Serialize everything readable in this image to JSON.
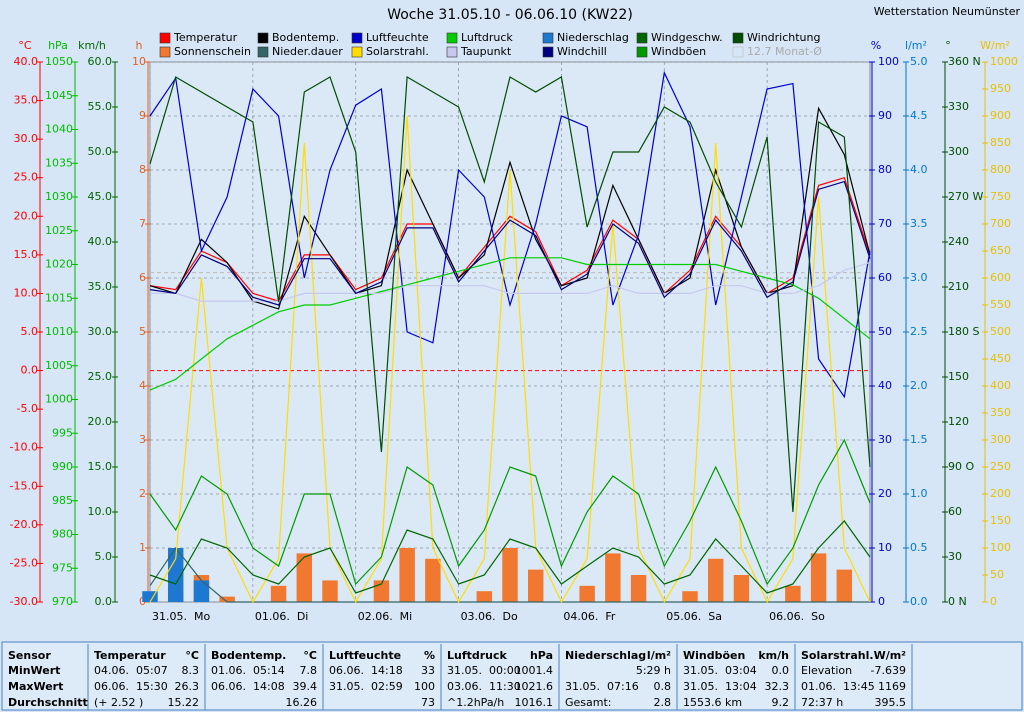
{
  "chart_data": {
    "type": "line",
    "title": "Woche 31.05.10 - 06.06.10 (KW22)",
    "station": "Wetterstation Neumünster",
    "x": [
      0,
      6,
      12,
      18,
      24,
      30,
      36,
      42,
      48,
      54,
      60,
      66,
      72,
      78,
      84,
      90,
      96,
      102,
      108,
      114,
      120,
      126,
      132,
      138,
      144,
      150,
      156,
      162,
      168
    ],
    "xlim": [
      0,
      168
    ],
    "xticks": [
      {
        "value": 0,
        "label": "31.05.  Mo"
      },
      {
        "value": 24,
        "label": "01.06.  Di"
      },
      {
        "value": 48,
        "label": "02.06.  Mi"
      },
      {
        "value": 72,
        "label": "03.06.  Do"
      },
      {
        "value": 96,
        "label": "04.06.  Fr"
      },
      {
        "value": 120,
        "label": "05.06.  Sa"
      },
      {
        "value": 144,
        "label": "06.06.  So"
      }
    ],
    "axes": [
      {
        "unit": "°C",
        "color": "#ff0000",
        "side": "left",
        "ylim": [
          -30,
          40
        ],
        "yticks": [
          {
            "value": -30,
            "label": "-30.0"
          },
          {
            "value": -25,
            "label": "-25.0"
          },
          {
            "value": -20,
            "label": "-20.0"
          },
          {
            "value": -15,
            "label": "-15.0"
          },
          {
            "value": -10,
            "label": "-10.0"
          },
          {
            "value": -5,
            "label": "-5.0"
          },
          {
            "value": 0,
            "label": "0.0"
          },
          {
            "value": 5,
            "label": "5.0"
          },
          {
            "value": 10,
            "label": "10.0"
          },
          {
            "value": 15,
            "label": "15.0"
          },
          {
            "value": 20,
            "label": "20.0"
          },
          {
            "value": 25,
            "label": "25.0"
          },
          {
            "value": 30,
            "label": "30.0"
          },
          {
            "value": 35,
            "label": "35.0"
          },
          {
            "value": 40,
            "label": "40.0"
          }
        ]
      },
      {
        "unit": "hPa",
        "color": "#00bb00",
        "side": "left",
        "ylim": [
          970,
          1050
        ],
        "yticks": [
          970,
          975,
          980,
          985,
          990,
          995,
          1000,
          1005,
          1010,
          1015,
          1020,
          1025,
          1030,
          1035,
          1040,
          1045,
          1050
        ]
      },
      {
        "unit": "km/h",
        "color": "#006600",
        "side": "left",
        "ylim": [
          0,
          60
        ],
        "yticks": [
          {
            "value": 0,
            "label": "0.0"
          },
          {
            "value": 5,
            "label": "5.0"
          },
          {
            "value": 10,
            "label": "10.0"
          },
          {
            "value": 15,
            "label": "15.0"
          },
          {
            "value": 20,
            "label": "20.0"
          },
          {
            "value": 25,
            "label": "25.0"
          },
          {
            "value": 30,
            "label": "30.0"
          },
          {
            "value": 35,
            "label": "35.0"
          },
          {
            "value": 40,
            "label": "40.0"
          },
          {
            "value": 45,
            "label": "45.0"
          },
          {
            "value": 50,
            "label": "50.0"
          },
          {
            "value": 55,
            "label": "55.0"
          },
          {
            "value": 60,
            "label": "60.0"
          }
        ]
      },
      {
        "unit": "h",
        "color": "#e06020",
        "side": "left",
        "grid": true,
        "ylim": [
          0,
          10
        ],
        "yticks": [
          0,
          1,
          2,
          3,
          4,
          5,
          6,
          7,
          8,
          9,
          10
        ]
      },
      {
        "unit": "%",
        "color": "#0000cc",
        "side": "right",
        "ylim": [
          0,
          100
        ],
        "yticks": [
          0,
          10,
          20,
          30,
          40,
          50,
          60,
          70,
          80,
          90,
          100
        ]
      },
      {
        "unit": "l/m²",
        "color": "#0077cc",
        "side": "right",
        "ylim": [
          0,
          5
        ],
        "yticks": [
          {
            "value": 0,
            "label": "0.0"
          },
          {
            "value": 0.5,
            "label": "0.5"
          },
          {
            "value": 1,
            "label": "1.0"
          },
          {
            "value": 1.5,
            "label": "1.5"
          },
          {
            "value": 2,
            "label": "2.0"
          },
          {
            "value": 2.5,
            "label": "2.5"
          },
          {
            "value": 3,
            "label": "3.0"
          },
          {
            "value": 3.5,
            "label": "3.5"
          },
          {
            "value": 4,
            "label": "4.0"
          },
          {
            "value": 4.5,
            "label": "4.5"
          },
          {
            "value": 5,
            "label": "5.0"
          }
        ]
      },
      {
        "unit": "°",
        "color": "#004d00",
        "side": "right",
        "ylim": [
          0,
          360
        ],
        "yticks": [
          {
            "value": 0,
            "label": "0   N"
          },
          30,
          60,
          {
            "value": 90,
            "label": "90   O"
          },
          120,
          150,
          {
            "value": 180,
            "label": "180 S"
          },
          210,
          240,
          {
            "value": 270,
            "label": "270 W"
          },
          300,
          330,
          {
            "value": 360,
            "label": "360 N"
          }
        ]
      },
      {
        "unit": "W/m²",
        "color": "#e8c000",
        "side": "right",
        "ylim": [
          0,
          1000
        ],
        "yticks": [
          0,
          50,
          100,
          150,
          200,
          250,
          300,
          350,
          400,
          450,
          500,
          550,
          600,
          650,
          700,
          750,
          800,
          850,
          900,
          950,
          1000
        ]
      }
    ],
    "series": [
      {
        "name": "Temperatur",
        "color": "#ff0000",
        "axis": "°C",
        "type": "line",
        "values": [
          11,
          10.5,
          15.5,
          14,
          10,
          9,
          15,
          15,
          10.5,
          12,
          19,
          19,
          12,
          16,
          20,
          18,
          11,
          13,
          19.5,
          17,
          10,
          13,
          20,
          16,
          10,
          12,
          24,
          25,
          15
        ]
      },
      {
        "name": "Sonnenschein",
        "color": "#f07830",
        "axis": "h",
        "type": "bar",
        "values": [
          0,
          0.2,
          0.5,
          0.1,
          0,
          0.3,
          0.9,
          0.4,
          0,
          0.4,
          1,
          0.8,
          0,
          0.2,
          1,
          0.6,
          0,
          0.3,
          0.9,
          0.5,
          0,
          0.2,
          0.8,
          0.5,
          0,
          0.3,
          0.9,
          0.6,
          0
        ]
      },
      {
        "name": "Bodentemp.",
        "color": "#000000",
        "axis": "°C",
        "type": "line",
        "values": [
          11,
          10,
          17,
          14,
          9,
          8,
          20,
          15,
          10,
          11,
          26,
          19,
          12,
          15,
          27,
          17,
          11,
          12,
          24,
          17,
          10,
          12,
          26,
          16,
          10,
          11,
          34,
          28,
          15
        ]
      },
      {
        "name": "Nieder.dauer",
        "color": "#336666",
        "axis": "h",
        "type": "line",
        "values": [
          0.3,
          1,
          0.4,
          0,
          0,
          0,
          0,
          0,
          0,
          0,
          0,
          0,
          0,
          0,
          0,
          0,
          0,
          0,
          0,
          0,
          0,
          0,
          0,
          0,
          0,
          0,
          0,
          0,
          0
        ]
      },
      {
        "name": "Luftfeuchte",
        "color": "#0000cc",
        "axis": "%",
        "type": "line",
        "values": [
          90,
          97,
          65,
          75,
          95,
          90,
          60,
          80,
          92,
          95,
          50,
          48,
          80,
          75,
          55,
          70,
          90,
          88,
          55,
          68,
          98,
          88,
          55,
          75,
          95,
          96,
          45,
          38,
          65
        ]
      },
      {
        "name": "Solarstrahl.",
        "color": "#ffdd00",
        "axis": "W/m²",
        "type": "line",
        "values": [
          0,
          80,
          600,
          100,
          0,
          80,
          850,
          100,
          0,
          80,
          900,
          100,
          0,
          80,
          800,
          100,
          0,
          80,
          700,
          100,
          0,
          80,
          850,
          100,
          0,
          80,
          750,
          100,
          0
        ]
      },
      {
        "name": "Luftdruck",
        "color": "#00cc00",
        "axis": "hPa",
        "type": "line",
        "values": [
          1001.4,
          1003,
          1006,
          1009,
          1011,
          1013,
          1014,
          1014,
          1015,
          1016,
          1017,
          1018,
          1019,
          1020,
          1021,
          1021,
          1021,
          1020,
          1020,
          1020,
          1020,
          1020,
          1020,
          1019,
          1018,
          1017,
          1015,
          1012,
          1009
        ]
      },
      {
        "name": "Taupunkt",
        "color": "#c8c8ee",
        "axis": "°C",
        "type": "line",
        "values": [
          10,
          10,
          9,
          9,
          9,
          9,
          10,
          10,
          10,
          10,
          11,
          11,
          11,
          11,
          10,
          10,
          10,
          10,
          11,
          10,
          10,
          10,
          11,
          11,
          10,
          10,
          11,
          13,
          14
        ]
      },
      {
        "name": "Niederschlag",
        "color": "#1e78d2",
        "axis": "l/m²",
        "type": "bar",
        "values": [
          0.1,
          0.5,
          0.2,
          0,
          0,
          0,
          0,
          0,
          0,
          0,
          0,
          0,
          0,
          0,
          0,
          0,
          0,
          0,
          0,
          0,
          0,
          0,
          0,
          0,
          0,
          0,
          0,
          0,
          0
        ]
      },
      {
        "name": "Windchill",
        "color": "#000080",
        "axis": "°C",
        "type": "line",
        "values": [
          10.5,
          10,
          15,
          13.5,
          9.5,
          8.5,
          14.5,
          14.5,
          10,
          11.5,
          18.5,
          18.5,
          11.5,
          15.5,
          19.5,
          17.5,
          10.5,
          12.5,
          19,
          16.5,
          9.5,
          12.5,
          19.5,
          15.5,
          9.5,
          11.5,
          23.5,
          24.5,
          14.5
        ]
      },
      {
        "name": "Windgeschw.",
        "color": "#006600",
        "axis": "km/h",
        "type": "line",
        "values": [
          3,
          2,
          7,
          6,
          3,
          2,
          5,
          6,
          1,
          2,
          8,
          7,
          2,
          3,
          7,
          6,
          2,
          4,
          6,
          5,
          2,
          3,
          7,
          4,
          1,
          2,
          6,
          9,
          5
        ]
      },
      {
        "name": "Windböen",
        "color": "#009900",
        "axis": "km/h",
        "type": "line",
        "values": [
          12,
          8,
          14,
          12,
          6,
          4,
          12,
          12,
          2,
          5,
          15,
          13,
          4,
          8,
          15,
          14,
          4,
          10,
          14,
          12,
          4,
          9,
          15,
          9,
          2,
          6,
          13,
          18,
          11
        ]
      },
      {
        "name": "Windrichtung",
        "color": "#004d00",
        "axis": "°",
        "type": "line",
        "values": [
          292,
          350,
          340,
          330,
          320,
          200,
          340,
          350,
          300,
          100,
          350,
          340,
          330,
          280,
          350,
          340,
          350,
          250,
          300,
          300,
          330,
          320,
          280,
          250,
          310,
          60,
          320,
          310,
          90
        ]
      }
    ],
    "reference_lines": [
      {
        "axis": "°C",
        "value": 0,
        "color": "#ff0000"
      },
      {
        "axis": "°C",
        "value": 12.7,
        "color": "#bbbbbb",
        "label": "12.7 Monat-Ø"
      }
    ],
    "table": {
      "row_labels": [
        "Sensor",
        "MinWert",
        "MaxWert",
        "Durchschnitt"
      ],
      "columns": [
        {
          "title": "Temperatur",
          "unit": "°C",
          "rows": [
            [
              "04.06.",
              "05:07",
              "8.3"
            ],
            [
              "06.06.",
              "15:30",
              "26.3"
            ],
            [
              "(+ 2.52 )",
              "15.22"
            ]
          ]
        },
        {
          "title": "Bodentemp.",
          "unit": "°C",
          "rows": [
            [
              "01.06.",
              "05:14",
              "7.8"
            ],
            [
              "06.06.",
              "14:08",
              "39.4"
            ],
            [
              "16.26"
            ]
          ]
        },
        {
          "title": "Luftfeuchte",
          "unit": "%",
          "rows": [
            [
              "06.06.",
              "14:18",
              "33"
            ],
            [
              "31.05.",
              "02:59",
              "100"
            ],
            [
              "73"
            ]
          ]
        },
        {
          "title": "Luftdruck",
          "unit": "hPa",
          "rows": [
            [
              "31.05.",
              "00:00",
              "1001.4"
            ],
            [
              "03.06.",
              "11:30",
              "1021.6"
            ],
            [
              "^1.2hPa/h",
              "1016.1"
            ]
          ]
        },
        {
          "title": "Niederschlag",
          "unit": "l/m²",
          "rows": [
            [
              "5:29 h"
            ],
            [
              "31.05.",
              "07:16",
              "0.8"
            ],
            [
              "Gesamt:",
              "2.8"
            ]
          ]
        },
        {
          "title": "Windböen",
          "unit": "km/h",
          "rows": [
            [
              "31.05.",
              "03:04",
              "0.0"
            ],
            [
              "31.05.",
              "13:04",
              "32.3"
            ],
            [
              "1553.6 km",
              "9.2"
            ]
          ]
        },
        {
          "title": "Solarstrahl.",
          "unit": "W/m²",
          "rows": [
            [
              "Elevation",
              "-7.639"
            ],
            [
              "01.06.",
              "13:45",
              "1169"
            ],
            [
              "72:37 h",
              "395.5"
            ]
          ]
        }
      ]
    }
  }
}
